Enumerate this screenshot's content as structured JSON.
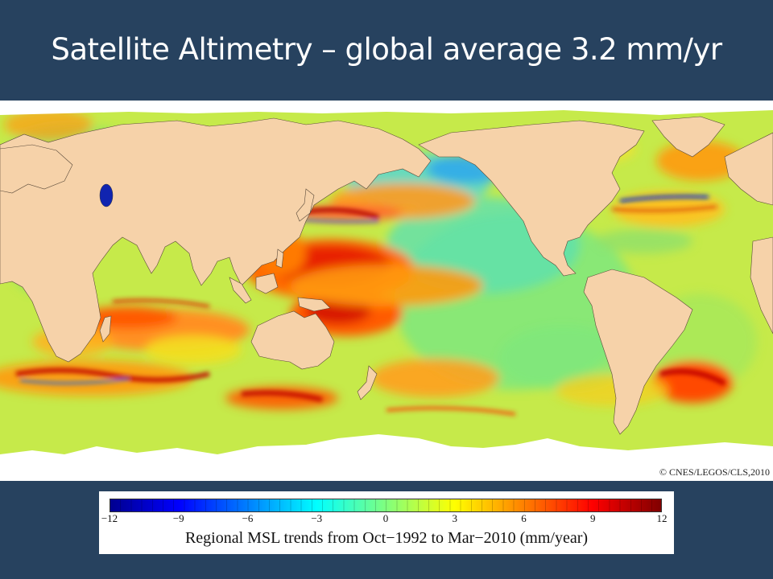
{
  "slide": {
    "title": "Satellite Altimetry – global average 3.2 mm/yr"
  },
  "map": {
    "credit": "© CNES/LEGOS/CLS,2010",
    "ocean_base_color": "#c6ea4a",
    "land_color": "#f6d2a9",
    "ice_color": "#ffffff"
  },
  "legend": {
    "caption": "Regional MSL trends from Oct−1992 to Mar−2010 (mm/year)",
    "min": -12,
    "max": 12,
    "ticks": [
      {
        "value": -12,
        "label": "−12"
      },
      {
        "value": -9,
        "label": "−9"
      },
      {
        "value": -6,
        "label": "−6"
      },
      {
        "value": -3,
        "label": "−3"
      },
      {
        "value": 0,
        "label": "0"
      },
      {
        "value": 3,
        "label": "3"
      },
      {
        "value": 6,
        "label": "6"
      },
      {
        "value": 9,
        "label": "9"
      },
      {
        "value": 12,
        "label": "12"
      }
    ],
    "colors": [
      "#00008f",
      "#0000ff",
      "#0080ff",
      "#00ffff",
      "#7fff7f",
      "#ffff00",
      "#ff8000",
      "#ff0000",
      "#800000"
    ]
  }
}
